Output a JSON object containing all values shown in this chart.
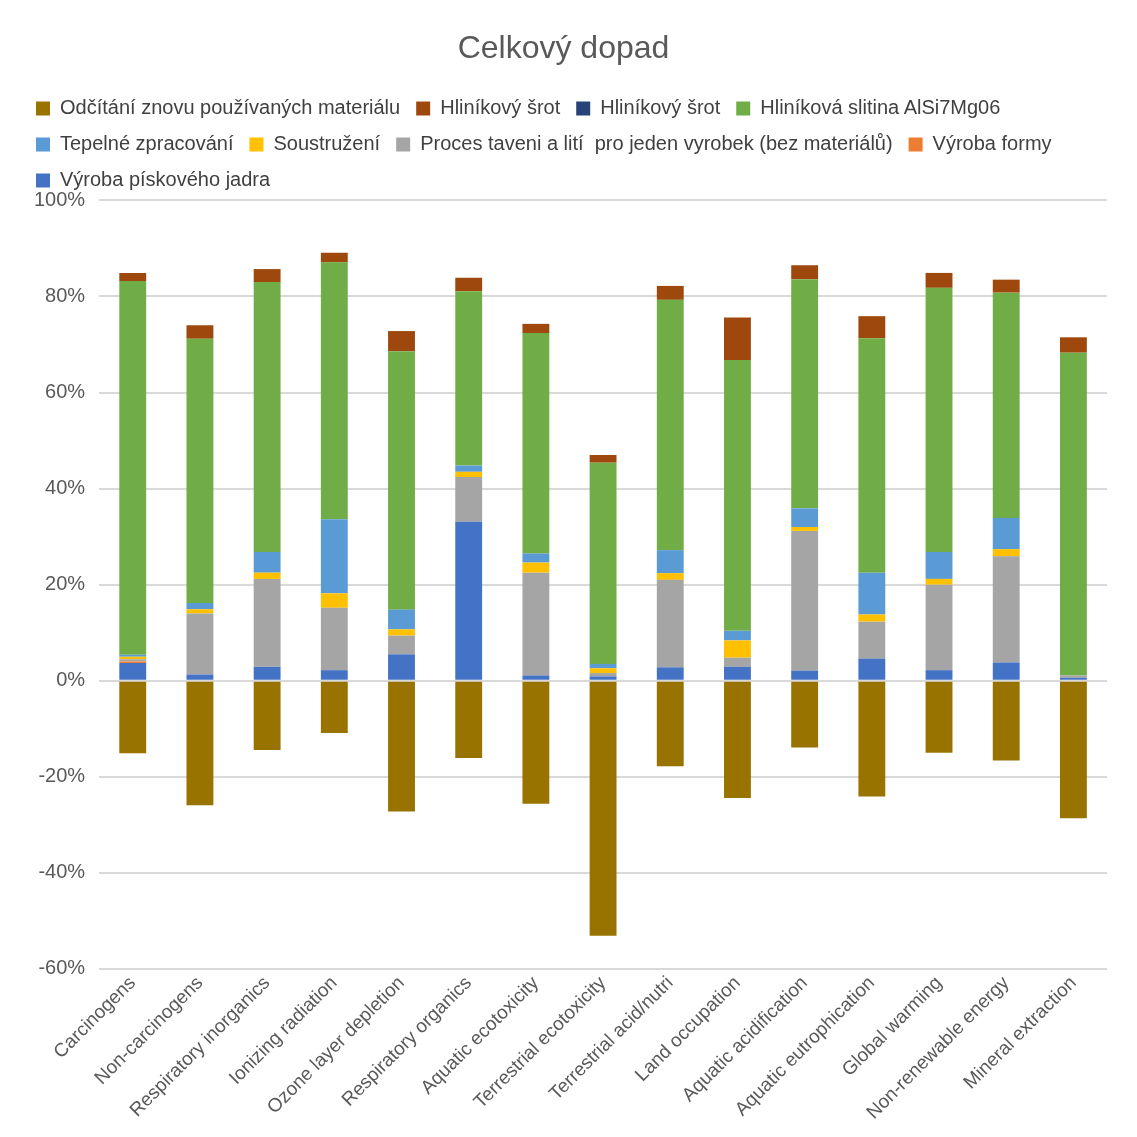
{
  "chart_data": {
    "type": "bar",
    "title": "Celkový dopad",
    "stacked": true,
    "grid": "y",
    "legend": "top",
    "categories": [
      "Carcinogens",
      "Non-carcinogens",
      "Respiratory inorganics",
      "Ionizing radiation",
      "Ozone layer depletion",
      "Respiratory organics",
      "Aquatic ecotoxicity",
      "Terrestrial ecotoxicity",
      "Terrestrial acid/nutri",
      "Land occupation",
      "Aquatic acidification",
      "Aquatic eutrophication",
      "Global warming",
      "Non-renewable energy",
      "Mineral extraction"
    ],
    "ylim": [
      -60,
      100
    ],
    "yticks": [
      {
        "value": -60,
        "label": "-60%"
      },
      {
        "value": -40,
        "label": "-40%"
      },
      {
        "value": -20,
        "label": "-20%"
      },
      {
        "value": 0,
        "label": "0%"
      },
      {
        "value": 20,
        "label": "20%"
      },
      {
        "value": 40,
        "label": "40%"
      },
      {
        "value": 60,
        "label": "60%"
      },
      {
        "value": 80,
        "label": "80%"
      },
      {
        "value": 100,
        "label": "100%"
      }
    ],
    "series": [
      {
        "name": "Odčítání znovu používaných materiálu",
        "color": "#997300",
        "values": [
          -15.1,
          -25.9,
          -14.4,
          -10.9,
          -27.2,
          -16.1,
          -25.6,
          -53.1,
          -17.8,
          -24.4,
          -13.9,
          -24.1,
          -15.0,
          -16.6,
          -28.6
        ]
      },
      {
        "name": "Výroba pískového jadra",
        "color": "#4472c4",
        "values": [
          3.7,
          1.3,
          2.9,
          2.2,
          5.5,
          33.1,
          1.1,
          0.9,
          2.8,
          2.9,
          2.1,
          4.6,
          2.2,
          3.8,
          0.6
        ]
      },
      {
        "name": "Výroba formy",
        "color": "#ed7d31",
        "values": [
          0.3,
          0,
          0,
          0,
          0,
          0,
          0,
          0,
          0,
          0,
          0,
          0,
          0,
          0,
          0
        ]
      },
      {
        "name": "Proces taveni a lití  pro jeden vyrobek (bez materiálů)",
        "color": "#a5a5a5",
        "values": [
          0.5,
          12.7,
          18.3,
          13.0,
          3.9,
          9.3,
          21.4,
          0.7,
          18.2,
          1.9,
          29.1,
          7.7,
          17.8,
          22.1,
          0.5
        ]
      },
      {
        "name": "Soustružení",
        "color": "#ffc000",
        "values": [
          0.5,
          0.9,
          1.3,
          3.0,
          1.3,
          1.1,
          2.1,
          1.0,
          1.4,
          3.6,
          0.8,
          1.5,
          1.2,
          1.5,
          0
        ]
      },
      {
        "name": "Tepelné zpracování",
        "color": "#5b9bd5",
        "values": [
          0.4,
          1.3,
          4.3,
          15.4,
          4.1,
          1.3,
          1.9,
          0.9,
          4.8,
          2.0,
          3.9,
          8.7,
          5.6,
          6.5,
          0
        ]
      },
      {
        "name": "Hliníková slitina AlSi7Mg06",
        "color": "#70ad47",
        "values": [
          77.8,
          55.0,
          56.2,
          53.5,
          53.8,
          36.3,
          45.9,
          41.9,
          52.1,
          56.4,
          47.7,
          48.8,
          55.0,
          46.9,
          67.2
        ]
      },
      {
        "name": "Hliníkový šrot",
        "color": "#264478",
        "values": [
          0,
          0,
          0,
          0,
          0,
          0,
          0,
          0,
          0,
          0,
          0,
          0,
          0,
          0,
          0
        ]
      },
      {
        "name": "Hliníkový šrot",
        "color": "#9e480e",
        "values": [
          1.7,
          2.8,
          2.7,
          2.0,
          4.2,
          2.8,
          1.9,
          1.6,
          2.9,
          8.8,
          2.9,
          4.6,
          3.1,
          2.7,
          3.2
        ]
      }
    ]
  }
}
